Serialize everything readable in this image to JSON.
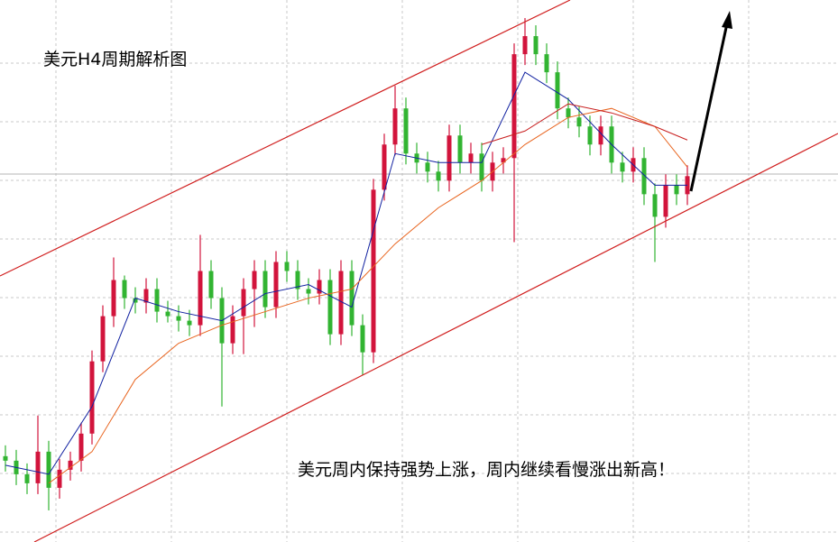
{
  "chart_data": {
    "type": "candlestick",
    "title": "美元H4周期解析图",
    "annotation": "美元周内保持强势上涨，周内继续看慢涨出新高！",
    "ylim": [
      0,
      600
    ],
    "up_color": "#d2143c",
    "down_color": "#32b432",
    "open": [
      95,
      90,
      75,
      65,
      100,
      60,
      80,
      90,
      120,
      200,
      250,
      290,
      270,
      265,
      280,
      255,
      250,
      245,
      240,
      300,
      270,
      220,
      250,
      280,
      300,
      260,
      310,
      300,
      280,
      275,
      290,
      230,
      300,
      240,
      210,
      390,
      440,
      480,
      430,
      420,
      410,
      400,
      450,
      420,
      430,
      400,
      420,
      425,
      540,
      560,
      540,
      520,
      480,
      470,
      460,
      440,
      460,
      420,
      410,
      425,
      385,
      360,
      395,
      385
    ],
    "high": [
      107,
      102,
      87,
      140,
      112,
      92,
      100,
      132,
      212,
      262,
      315,
      295,
      282,
      292,
      292,
      267,
      262,
      257,
      340,
      312,
      282,
      262,
      292,
      312,
      312,
      322,
      322,
      312,
      292,
      302,
      302,
      312,
      312,
      252,
      402,
      452,
      505,
      492,
      442,
      432,
      422,
      462,
      462,
      442,
      442,
      432,
      437,
      552,
      580,
      572,
      552,
      532,
      492,
      482,
      472,
      472,
      472,
      432,
      437,
      437,
      397,
      407,
      407,
      417
    ],
    "low": [
      78,
      63,
      53,
      53,
      35,
      48,
      68,
      78,
      108,
      188,
      238,
      258,
      253,
      253,
      243,
      243,
      233,
      228,
      228,
      258,
      150,
      208,
      208,
      238,
      248,
      248,
      288,
      268,
      263,
      263,
      218,
      218,
      228,
      185,
      198,
      378,
      428,
      418,
      408,
      398,
      388,
      388,
      408,
      408,
      388,
      388,
      408,
      332,
      528,
      528,
      508,
      468,
      458,
      448,
      428,
      428,
      408,
      398,
      398,
      373,
      310,
      348,
      373,
      373
    ],
    "close": [
      90,
      75,
      65,
      100,
      60,
      80,
      90,
      120,
      200,
      250,
      290,
      270,
      265,
      280,
      255,
      250,
      245,
      240,
      300,
      270,
      220,
      250,
      280,
      300,
      260,
      310,
      300,
      280,
      275,
      290,
      230,
      300,
      240,
      210,
      390,
      440,
      480,
      430,
      420,
      410,
      400,
      450,
      420,
      430,
      400,
      420,
      425,
      540,
      560,
      540,
      520,
      480,
      470,
      460,
      440,
      460,
      420,
      410,
      425,
      385,
      360,
      395,
      385,
      405
    ],
    "series": [
      {
        "color": "#1020a0",
        "x": [
          0,
          4,
          8,
          12,
          16,
          20,
          24,
          28,
          32,
          36,
          40,
          44,
          48,
          52,
          56,
          60,
          63
        ],
        "values": [
          85,
          75,
          150,
          270,
          255,
          245,
          275,
          285,
          260,
          430,
          420,
          420,
          520,
          490,
          440,
          395,
          395
        ]
      },
      {
        "color": "#e8641e",
        "x": [
          4,
          8,
          12,
          16,
          20,
          24,
          28,
          32,
          36,
          40,
          44,
          48,
          52,
          56,
          60,
          63
        ],
        "values": [
          65,
          100,
          180,
          220,
          240,
          255,
          270,
          280,
          330,
          370,
          400,
          440,
          470,
          480,
          460,
          415
        ]
      },
      {
        "color": "#c81e1e",
        "x": [
          44,
          48,
          52,
          56,
          60,
          63
        ],
        "values": [
          440,
          455,
          485,
          475,
          460,
          445
        ]
      }
    ]
  }
}
